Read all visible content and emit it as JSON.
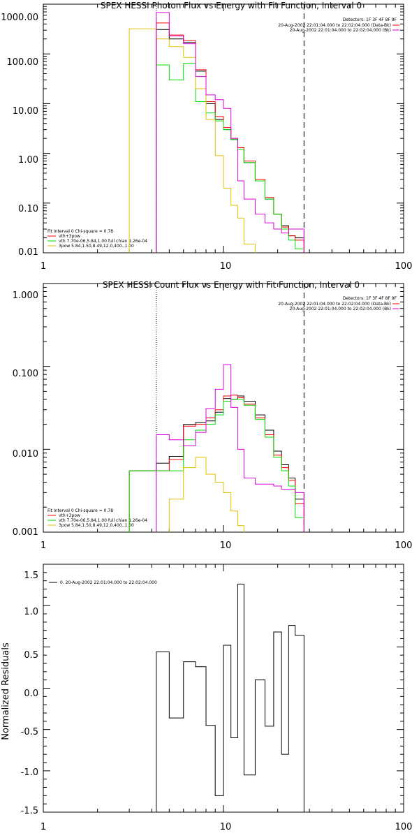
{
  "colors": {
    "black": "#000000",
    "red": "#ff0000",
    "green": "#00dd00",
    "yellow": "#e0c000",
    "magenta": "#dd00dd"
  },
  "chart_data": [
    {
      "type": "line",
      "title": "SPEX HESSI Photon Flux vs Energy with Fit Function, Interval 0",
      "xscale": "log",
      "yscale": "log",
      "xlim": [
        1,
        100
      ],
      "ylim": [
        0.01,
        1000
      ],
      "xticks": [
        "1",
        "10",
        "100"
      ],
      "yticks": [
        "0.01",
        "0.10",
        "1.00",
        "10.00",
        "100.00",
        "1000.00"
      ],
      "header": [
        "Detectors: 1F 3F 4F 8F 9F",
        "20-Aug-2002 22:01:04.000 to 22:02:04.000 (Data-Bk)",
        "20-Aug-2002 22:01:04.000 to 22:02:04.000 (Bk)"
      ],
      "legend": [
        "Fit Interval 0   Chi-square = 0.78",
        "vth+3pow",
        "vth 7.70e-06,5.84,1.00  full chian 1.26e-04",
        "3pow 5.84,1.50,8.49,12.0,400.,1.00"
      ],
      "vlines": [
        {
          "x": 4.24,
          "style": "dotted"
        },
        {
          "x": 28,
          "style": "dashed"
        }
      ],
      "edges": [
        3,
        4.24,
        5,
        6,
        7,
        8,
        9,
        10,
        11,
        12,
        13,
        15,
        17,
        19,
        21,
        23,
        25,
        28
      ],
      "series": [
        {
          "name": "Data-Bk",
          "color": "black",
          "values": [
            null,
            310,
            200,
            170,
            45,
            10,
            4.8,
            3.0,
            1.9,
            1.2,
            0.65,
            0.28,
            0.12,
            0.06,
            0.035,
            0.022,
            0.02
          ]
        },
        {
          "name": "",
          "color": "red",
          "values": [
            null,
            420,
            240,
            185,
            48,
            11,
            5.5,
            3.3,
            2.0,
            1.3,
            0.7,
            0.3,
            0.13,
            0.06,
            0.033,
            0.022,
            0.018
          ]
        },
        {
          "name": "",
          "color": "green",
          "values": [
            null,
            60,
            30,
            65,
            11,
            6.5,
            4.5,
            3.0,
            1.9,
            1.2,
            0.65,
            0.28,
            0.12,
            0.06,
            0.03,
            0.018,
            0.012
          ]
        },
        {
          "name": "",
          "color": "yellow",
          "values": [
            320,
            200,
            140,
            85,
            20,
            4.8,
            0.9,
            0.2,
            0.09,
            0.05,
            0.015,
            null,
            null,
            null,
            null,
            null,
            null
          ]
        },
        {
          "name": "Bk",
          "color": "magenta",
          "values": [
            null,
            680,
            230,
            160,
            35,
            15,
            12,
            8.0,
            2.0,
            0.28,
            0.12,
            0.06,
            0.04,
            0.03,
            0.025,
            0.03,
            0.03
          ]
        }
      ]
    },
    {
      "type": "line",
      "title": "SPEX HESSI Count Flux vs Energy with Fit Function, Interval 0",
      "xscale": "log",
      "yscale": "log",
      "xlim": [
        1,
        100
      ],
      "ylim": [
        0.001,
        1
      ],
      "xticks": [
        "1",
        "10",
        "100"
      ],
      "yticks": [
        "0.001",
        "0.010",
        "0.100",
        "1.000"
      ],
      "header": [
        "Detectors: 1F 3F 4F 8F 9F",
        "20-Aug-2002 22:01:04.000 to 22:02:04.000 (Data-Bk)",
        "20-Aug-2002 22:01:04.000 to 22:02:04.000 (Bk)"
      ],
      "legend": [
        "Fit Interval 0   Chi-square = 0.78",
        "vth+3pow",
        "vth 7.70e-06,5.84,1.00  full chian 1.26e-04",
        "3pow 5.84,1.50,8.49,12.0,400.,1.00"
      ],
      "vlines": [
        {
          "x": 4.24,
          "style": "dotted"
        },
        {
          "x": 28,
          "style": "dashed"
        }
      ],
      "edges": [
        3,
        4.24,
        5,
        6,
        7,
        8,
        9,
        10,
        11,
        12,
        13,
        15,
        17,
        19,
        21,
        23,
        25,
        28
      ],
      "series": [
        {
          "name": "",
          "color": "black",
          "values": [
            0.0055,
            0.0068,
            0.0082,
            0.02,
            0.021,
            0.022,
            0.028,
            0.041,
            0.04,
            0.044,
            0.038,
            0.026,
            0.017,
            0.0095,
            0.0065,
            0.0045,
            0.0025
          ]
        },
        {
          "name": "",
          "color": "red",
          "values": [
            0.0055,
            0.0055,
            0.0075,
            0.019,
            0.02,
            0.024,
            0.03,
            0.044,
            0.045,
            0.042,
            0.035,
            0.024,
            0.015,
            0.0085,
            0.006,
            0.0042,
            0.0022
          ]
        },
        {
          "name": "",
          "color": "green",
          "values": [
            0.0055,
            0.0055,
            0.0055,
            0.013,
            0.017,
            0.02,
            0.026,
            0.038,
            0.04,
            0.04,
            0.034,
            0.023,
            0.014,
            0.008,
            0.0055,
            0.0036,
            0.0015
          ]
        },
        {
          "name": "",
          "color": "yellow",
          "values": [
            null,
            null,
            0.0025,
            0.006,
            0.008,
            0.005,
            0.004,
            0.003,
            0.0018,
            0.0012,
            null,
            null,
            null,
            null,
            null,
            null,
            null
          ]
        },
        {
          "name": "",
          "color": "magenta",
          "values": [
            null,
            0.015,
            0.013,
            0.011,
            0.016,
            0.031,
            0.053,
            0.105,
            0.032,
            0.01,
            0.0045,
            0.0038,
            0.0038,
            0.0036,
            0.0033,
            0.0033,
            0.003
          ]
        }
      ]
    },
    {
      "type": "line",
      "ylabel": "Normalized Residuals",
      "xscale": "log",
      "xlim": [
        1,
        100
      ],
      "ylim": [
        -1.5,
        1.5
      ],
      "xticks": [
        "1",
        "10",
        "100"
      ],
      "yticks": [
        "-1.5",
        "-1.0",
        "-0.5",
        "0.0",
        "0.5",
        "1.0",
        "1.5"
      ],
      "legend": [
        "0. 20-Aug-2002 22:01:04.000 to 22:02:04.000"
      ],
      "edges": [
        4.24,
        5,
        6,
        7,
        8,
        9,
        10,
        11,
        12,
        13,
        15,
        17,
        19,
        21,
        23,
        25,
        28
      ],
      "series": [
        {
          "name": "",
          "color": "black",
          "values": [
            0.44,
            -0.36,
            0.32,
            0.26,
            -0.45,
            -1.3,
            0.52,
            -0.6,
            1.26,
            -1.05,
            0.1,
            -0.46,
            0.68,
            -0.8,
            0.76,
            0.64
          ]
        }
      ]
    }
  ]
}
